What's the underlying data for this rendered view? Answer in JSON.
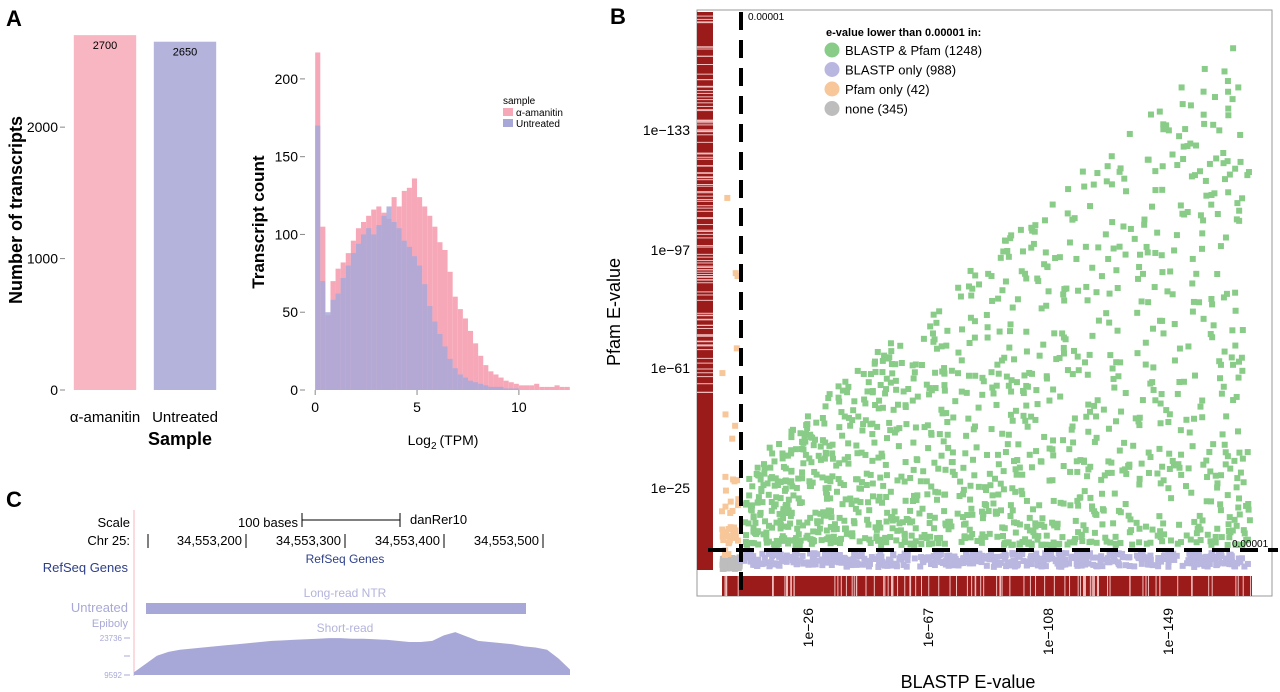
{
  "panels": {
    "a": "A",
    "b": "B",
    "c": "C"
  },
  "chart_data": [
    {
      "type": "bar",
      "categories": [
        "α-amanitin",
        "Untreated"
      ],
      "values": [
        2700,
        2650
      ],
      "data_labels": [
        "2700",
        "2650"
      ],
      "colors": [
        "#f7b6c2",
        "#b3b3dc"
      ],
      "xlabel": "Sample",
      "ylabel": "Number of transcripts",
      "ylim": [
        0,
        2800
      ],
      "yticks": [
        "0",
        "1000",
        "2000"
      ]
    },
    {
      "type": "bar",
      "subtype": "histogram",
      "xlabel": "Log",
      "xlabel_sub": "2",
      "xlabel_suffix": "(TPM)",
      "ylabel": "Transcript count",
      "xlim": [
        -0.5,
        13
      ],
      "ylim": [
        0,
        225
      ],
      "xticks": [
        "0",
        "5",
        "10"
      ],
      "yticks": [
        "0",
        "50",
        "100",
        "150",
        "200"
      ],
      "legend": {
        "title": "sample",
        "placement": "top-right"
      },
      "bin_width": 0.25,
      "bin_start": 0,
      "series": [
        {
          "name": "α-amanitin",
          "color": "#f7a8b8",
          "values": [
            217,
            105,
            48,
            70,
            78,
            82,
            88,
            96,
            104,
            108,
            112,
            116,
            118,
            114,
            110,
            124,
            118,
            128,
            130,
            136,
            124,
            118,
            112,
            105,
            95,
            90,
            76,
            60,
            52,
            46,
            38,
            30,
            22,
            16,
            12,
            10,
            8,
            6,
            5,
            4,
            3,
            3,
            3,
            4,
            2,
            2,
            2,
            3,
            2,
            2
          ]
        },
        {
          "name": "Untreated",
          "color": "#a8a8d8",
          "values": [
            170,
            70,
            50,
            58,
            62,
            72,
            80,
            88,
            94,
            100,
            104,
            100,
            106,
            112,
            118,
            108,
            104,
            96,
            92,
            86,
            80,
            68,
            54,
            44,
            36,
            28,
            20,
            14,
            10,
            8,
            6,
            5,
            4,
            3,
            2,
            2,
            2,
            1,
            1,
            1
          ]
        }
      ]
    },
    {
      "type": "scatter",
      "xlabel": "BLASTP E-value",
      "ylabel": "Pfam E-value",
      "xticks": [
        "1e−26",
        "1e−67",
        "1e−108",
        "1e−149"
      ],
      "yticks": [
        "1e−25",
        "1e−61",
        "1e−97",
        "1e−133"
      ],
      "threshold_label_x": "0.00001",
      "threshold_label_y": "0.00001",
      "legend": {
        "title": "e-value lower than 0.00001 in:",
        "placement": "top-right",
        "items": [
          {
            "label": "BLASTP & Pfam (1248)",
            "color": "#88cc88"
          },
          {
            "label": "BLASTP only (988)",
            "color": "#b9b6e0"
          },
          {
            "label": "Pfam only (42)",
            "color": "#f7c79a"
          },
          {
            "label": "none (345)",
            "color": "#bdbdbd"
          }
        ]
      },
      "counts": {
        "blastp_pfam": 1248,
        "blastp_only": 988,
        "pfam_only": 42,
        "none": 345
      },
      "colors": {
        "blastp_pfam": "#88cc88",
        "blastp_only": "#b9b6e0",
        "pfam_only": "#f7c79a",
        "none": "#bdbdbd",
        "rug": "#9b1b1b"
      }
    }
  ],
  "browser": {
    "scale_label": "Scale",
    "scale_value": "100 bases",
    "assembly": "danRer10",
    "chr_label": "Chr 25:",
    "positions": [
      "34,553,200",
      "34,553,300",
      "34,553,400",
      "34,553,500"
    ],
    "refseq_center": "RefSeq Genes",
    "refseq_left": "RefSeq Genes",
    "untreated_label": "Untreated",
    "epiboly_label": "Epiboly",
    "long_read_label": "Long-read NTR",
    "short_read_label": "Short-read",
    "ymax_label": "23736",
    "ymin_label": "9592"
  }
}
